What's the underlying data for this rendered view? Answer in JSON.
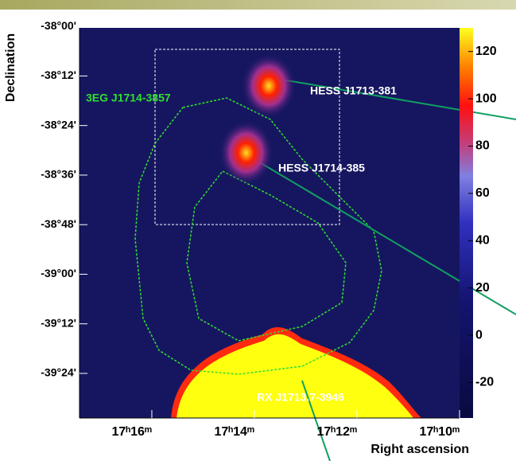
{
  "chart_data": {
    "type": "skymap",
    "xlabel": "Right ascension",
    "ylabel": "Declination",
    "xlim": [
      17.41,
      10
    ],
    "ylim": [
      -39.58,
      -38.006
    ],
    "xticks": [
      {
        "value": 16,
        "label": "17ʰ16ᵐ"
      },
      {
        "value": 14,
        "label": "17ʰ14ᵐ"
      },
      {
        "value": 12,
        "label": "17ʰ12ᵐ"
      },
      {
        "value": 10,
        "label": "17ʰ10ᵐ"
      }
    ],
    "yticks": [
      {
        "value": -38.0,
        "label": "-38°00'"
      },
      {
        "value": -38.2,
        "label": "-38°12'"
      },
      {
        "value": -38.4,
        "label": "-38°24'"
      },
      {
        "value": -38.6,
        "label": "-38°36'"
      },
      {
        "value": -38.8,
        "label": "-38°48'"
      },
      {
        "value": -39.0,
        "label": "-39°00'"
      },
      {
        "value": -39.2,
        "label": "-39°12'"
      },
      {
        "value": -39.4,
        "label": "-39°24'"
      }
    ],
    "clim": [
      -35,
      130
    ],
    "cticks": [
      120,
      100,
      80,
      60,
      40,
      20,
      0,
      -20
    ],
    "sources": [
      {
        "name": "HESS J1713-381",
        "ra": 13.72,
        "dec": -38.24
      },
      {
        "name": "HESS J1714-385",
        "ra": 14.16,
        "dec": -38.51
      }
    ],
    "annotations": [
      "3EG J1714-3857",
      "RX J1713.7-3946"
    ]
  }
}
